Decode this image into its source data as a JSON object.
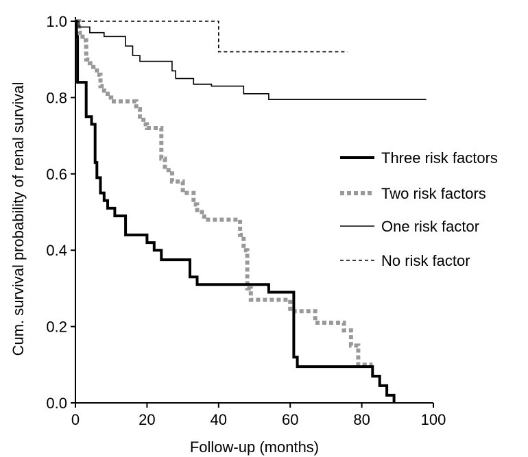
{
  "chart_data": {
    "type": "line",
    "subtype": "step",
    "title": "",
    "xlabel": "Follow-up (months)",
    "ylabel": "Cum. survival probability of renal survival",
    "xlim": [
      0,
      100
    ],
    "ylim": [
      0,
      1
    ],
    "x_ticks": [
      "0",
      "20",
      "40",
      "60",
      "80",
      "100"
    ],
    "y_ticks": [
      "0.0",
      "0.2",
      "0.4",
      "0.6",
      "0.8",
      "1.0"
    ],
    "grid": false,
    "legend_position": "right",
    "series": [
      {
        "name": "Three risk factors",
        "color": "#000000",
        "style": "thick-solid",
        "x": [
          0,
          0.3,
          0.6,
          3,
          4.5,
          5.5,
          6,
          7,
          8,
          9,
          11,
          14,
          20,
          22,
          24,
          27,
          32,
          34,
          40,
          54,
          61,
          62,
          64,
          70,
          74,
          83,
          85,
          87,
          89
        ],
        "y": [
          1.0,
          0.96,
          0.84,
          0.75,
          0.73,
          0.63,
          0.59,
          0.55,
          0.53,
          0.51,
          0.49,
          0.44,
          0.42,
          0.4,
          0.375,
          0.375,
          0.33,
          0.31,
          0.31,
          0.29,
          0.12,
          0.095,
          0.095,
          0.095,
          0.095,
          0.07,
          0.045,
          0.02,
          0.0
        ]
      },
      {
        "name": "Two risk factors",
        "color": "#999999",
        "style": "dotted",
        "x": [
          0,
          1,
          2,
          3,
          4,
          5,
          6,
          7,
          8,
          9,
          10,
          12,
          17,
          18,
          19,
          20,
          22,
          24,
          25,
          27,
          30,
          33,
          34,
          36,
          45,
          46,
          47,
          48,
          49,
          50,
          58,
          60,
          67,
          75,
          77,
          79,
          83
        ],
        "y": [
          1.0,
          0.97,
          0.95,
          0.9,
          0.89,
          0.88,
          0.86,
          0.83,
          0.81,
          0.8,
          0.79,
          0.79,
          0.77,
          0.75,
          0.73,
          0.72,
          0.72,
          0.64,
          0.61,
          0.58,
          0.55,
          0.52,
          0.5,
          0.48,
          0.48,
          0.44,
          0.4,
          0.3,
          0.27,
          0.27,
          0.27,
          0.24,
          0.21,
          0.19,
          0.15,
          0.1,
          0.1
        ]
      },
      {
        "name": "One risk factor",
        "color": "#000000",
        "style": "thin-solid",
        "x": [
          0,
          1,
          4,
          8,
          14,
          16,
          18,
          22,
          27,
          28,
          33,
          38,
          47,
          54,
          64,
          98
        ],
        "y": [
          1.0,
          0.985,
          0.97,
          0.96,
          0.935,
          0.91,
          0.895,
          0.895,
          0.87,
          0.85,
          0.835,
          0.83,
          0.81,
          0.795,
          0.795,
          0.795
        ]
      },
      {
        "name": "No risk factor",
        "color": "#000000",
        "style": "dashed",
        "x": [
          0,
          40,
          76
        ],
        "y": [
          1.0,
          0.92,
          0.92
        ]
      }
    ]
  }
}
